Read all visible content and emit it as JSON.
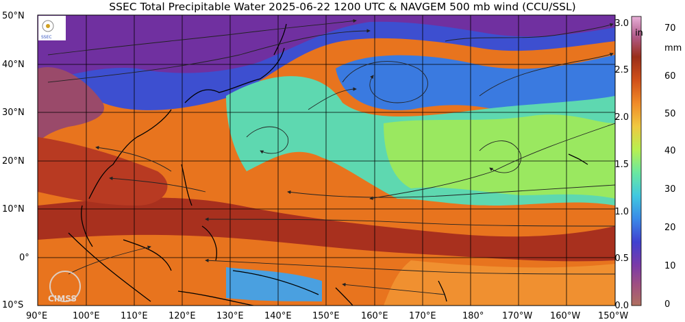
{
  "title": "SSEC Total Precipitable Water  2025-06-22 1200 UTC & NAVGEM 500 mb wind (CCU/SSL)",
  "lat_labels": [
    "50°N",
    "40°N",
    "30°N",
    "20°N",
    "10°N",
    "0°",
    "10°S"
  ],
  "lon_labels": [
    "90°E",
    "100°E",
    "110°E",
    "120°E",
    "130°E",
    "140°E",
    "150°E",
    "160°E",
    "170°E",
    "180°",
    "170°W",
    "160°W",
    "150°W"
  ],
  "colorbar": {
    "in_unit": "in",
    "mm_unit": "mm",
    "in_ticks": [
      "3.0",
      "2.5",
      "2.0",
      "1.5",
      "1.0",
      "0.5",
      "0.0"
    ],
    "mm_ticks": [
      "70",
      "60",
      "50",
      "40",
      "30",
      "20",
      "10",
      "0"
    ],
    "colors": [
      "#b06a6a",
      "#b04fa0",
      "#7a3aa8",
      "#3a56d8",
      "#3aa0e8",
      "#50d0d8",
      "#70e8a8",
      "#a8f060",
      "#f0d040",
      "#f09030",
      "#e05a1a",
      "#b8401a",
      "#8a2a1a",
      "#b06080",
      "#e0a0d0"
    ]
  },
  "watermark": "CIMSS",
  "logo_text": "SSEC"
}
